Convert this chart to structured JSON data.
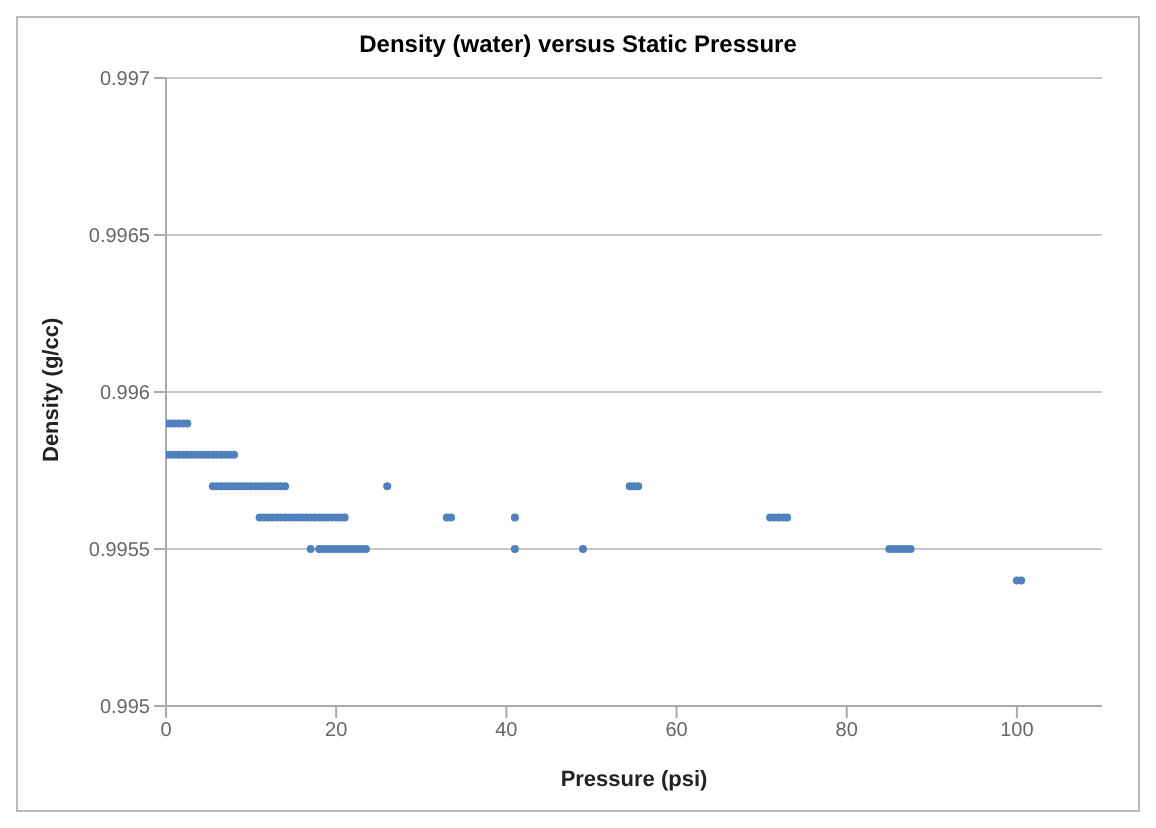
{
  "chart_data": {
    "type": "scatter",
    "title": "Density (water) versus Static Pressure",
    "xlabel": "Pressure (psi)",
    "ylabel": "Density (g/cc)",
    "xlim": [
      0,
      110
    ],
    "xticks": [
      0,
      20,
      40,
      60,
      80,
      100
    ],
    "ylim": [
      0.995,
      0.997
    ],
    "yticks": [
      0.995,
      0.9955,
      0.996,
      0.9965,
      0.997
    ],
    "grid": "y",
    "marker": "circle",
    "legend": false,
    "series": [
      {
        "color": "#4f81bd",
        "x": [
          0,
          0.5,
          1,
          1.5,
          2,
          2.5,
          0,
          0.5,
          1,
          1.5,
          2,
          2.5,
          3,
          3.5,
          4,
          4.5,
          5,
          5.5,
          6,
          6.5,
          7,
          7.5,
          8,
          5.5,
          6,
          6.5,
          7,
          7.5,
          8,
          8.5,
          9,
          9.5,
          10,
          10.5,
          11,
          11.5,
          12,
          12.5,
          13,
          13.5,
          14,
          26,
          54.5,
          55,
          55.5,
          11,
          11.5,
          12,
          12.5,
          13,
          13.5,
          14,
          14.5,
          15,
          15.5,
          16,
          16.5,
          17,
          17.5,
          18,
          18.5,
          19,
          19.5,
          20,
          20.5,
          21,
          33,
          33.5,
          41,
          71,
          71.5,
          72,
          72.5,
          73,
          17,
          18,
          18.5,
          19,
          19.5,
          20,
          20.5,
          21,
          21.5,
          22,
          22.5,
          23,
          23.5,
          41,
          49,
          85,
          85.5,
          86,
          86.5,
          87,
          87.5,
          100,
          100.5
        ],
        "values": [
          0.9959,
          0.9959,
          0.9959,
          0.9959,
          0.9959,
          0.9959,
          0.9958,
          0.9958,
          0.9958,
          0.9958,
          0.9958,
          0.9958,
          0.9958,
          0.9958,
          0.9958,
          0.9958,
          0.9958,
          0.9958,
          0.9958,
          0.9958,
          0.9958,
          0.9958,
          0.9958,
          0.9957,
          0.9957,
          0.9957,
          0.9957,
          0.9957,
          0.9957,
          0.9957,
          0.9957,
          0.9957,
          0.9957,
          0.9957,
          0.9957,
          0.9957,
          0.9957,
          0.9957,
          0.9957,
          0.9957,
          0.9957,
          0.9957,
          0.9957,
          0.9957,
          0.9957,
          0.9956,
          0.9956,
          0.9956,
          0.9956,
          0.9956,
          0.9956,
          0.9956,
          0.9956,
          0.9956,
          0.9956,
          0.9956,
          0.9956,
          0.9956,
          0.9956,
          0.9956,
          0.9956,
          0.9956,
          0.9956,
          0.9956,
          0.9956,
          0.9956,
          0.9956,
          0.9956,
          0.9956,
          0.9956,
          0.9956,
          0.9956,
          0.9956,
          0.9956,
          0.9955,
          0.9955,
          0.9955,
          0.9955,
          0.9955,
          0.9955,
          0.9955,
          0.9955,
          0.9955,
          0.9955,
          0.9955,
          0.9955,
          0.9955,
          0.9955,
          0.9955,
          0.9955,
          0.9955,
          0.9955,
          0.9955,
          0.9955,
          0.9955,
          0.9954,
          0.9954
        ]
      }
    ]
  }
}
